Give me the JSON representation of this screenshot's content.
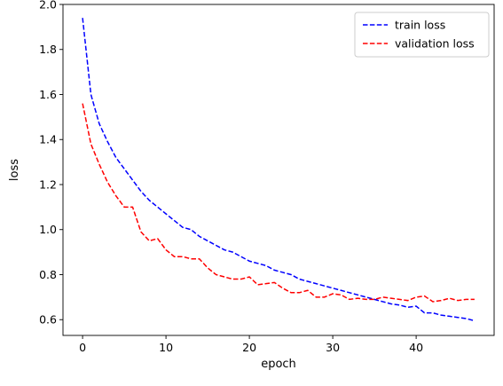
{
  "chart_data": {
    "type": "line",
    "title": "",
    "xlabel": "epoch",
    "ylabel": "loss",
    "xlim": [
      -2.35,
      49.35
    ],
    "ylim": [
      0.53,
      2.0
    ],
    "xticks": [
      0,
      10,
      20,
      30,
      40
    ],
    "yticks": [
      0.6,
      0.8,
      1.0,
      1.2,
      1.4,
      1.6,
      1.8,
      2.0
    ],
    "grid": false,
    "legend_position": "top-right",
    "series": [
      {
        "name": "train loss",
        "color": "#0000ff",
        "style": "dashed",
        "x": [
          0,
          1,
          2,
          3,
          4,
          5,
          6,
          7,
          8,
          9,
          10,
          11,
          12,
          13,
          14,
          15,
          16,
          17,
          18,
          19,
          20,
          21,
          22,
          23,
          24,
          25,
          26,
          27,
          28,
          29,
          30,
          31,
          32,
          33,
          34,
          35,
          36,
          37,
          38,
          39,
          40,
          41,
          42,
          43,
          44,
          45,
          46,
          47
        ],
        "values": [
          1.94,
          1.6,
          1.47,
          1.39,
          1.32,
          1.27,
          1.22,
          1.17,
          1.13,
          1.1,
          1.07,
          1.04,
          1.01,
          1.0,
          0.97,
          0.95,
          0.93,
          0.91,
          0.9,
          0.88,
          0.86,
          0.85,
          0.84,
          0.82,
          0.81,
          0.8,
          0.78,
          0.77,
          0.76,
          0.75,
          0.74,
          0.73,
          0.72,
          0.71,
          0.7,
          0.69,
          0.68,
          0.67,
          0.665,
          0.655,
          0.66,
          0.63,
          0.63,
          0.62,
          0.615,
          0.61,
          0.605,
          0.595
        ]
      },
      {
        "name": "validation loss",
        "color": "#ff0000",
        "style": "dashed",
        "x": [
          0,
          1,
          2,
          3,
          4,
          5,
          6,
          7,
          8,
          9,
          10,
          11,
          12,
          13,
          14,
          15,
          16,
          17,
          18,
          19,
          20,
          21,
          22,
          23,
          24,
          25,
          26,
          27,
          28,
          29,
          30,
          31,
          32,
          33,
          34,
          35,
          36,
          37,
          38,
          39,
          40,
          41,
          42,
          43,
          44,
          45,
          46,
          47
        ],
        "values": [
          1.56,
          1.38,
          1.29,
          1.21,
          1.15,
          1.1,
          1.1,
          0.99,
          0.95,
          0.96,
          0.91,
          0.88,
          0.88,
          0.87,
          0.87,
          0.83,
          0.8,
          0.79,
          0.78,
          0.78,
          0.79,
          0.755,
          0.76,
          0.765,
          0.74,
          0.72,
          0.72,
          0.73,
          0.7,
          0.7,
          0.715,
          0.71,
          0.69,
          0.695,
          0.69,
          0.69,
          0.7,
          0.695,
          0.69,
          0.685,
          0.7,
          0.705,
          0.68,
          0.685,
          0.695,
          0.685,
          0.69,
          0.69
        ]
      }
    ]
  }
}
